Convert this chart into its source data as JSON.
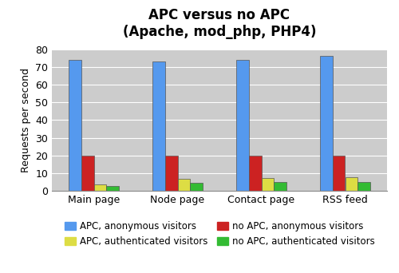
{
  "title": "APC versus no APC\n(Apache, mod_php, PHP4)",
  "ylabel": "Requests per second",
  "categories": [
    "Main page",
    "Node page",
    "Contact page",
    "RSS feed"
  ],
  "series": [
    {
      "label": "APC, anonymous visitors",
      "color": "#5599ee",
      "values": [
        74,
        73,
        74,
        76
      ]
    },
    {
      "label": "no APC, anonymous visitors",
      "color": "#cc2222",
      "values": [
        20,
        20,
        20,
        20
      ]
    },
    {
      "label": "APC, authenticated visitors",
      "color": "#dddd44",
      "values": [
        4,
        7,
        7.5,
        8
      ]
    },
    {
      "label": "no APC, authenticated visitors",
      "color": "#33bb33",
      "values": [
        3,
        4.5,
        5,
        5
      ]
    }
  ],
  "ylim": [
    0,
    80
  ],
  "yticks": [
    0,
    10,
    20,
    30,
    40,
    50,
    60,
    70,
    80
  ],
  "plot_bg_color": "#cccccc",
  "fig_bg_color": "#ffffff",
  "title_fontsize": 12,
  "axis_label_fontsize": 9,
  "tick_fontsize": 9,
  "legend_fontsize": 8.5,
  "bar_width": 0.15,
  "legend_order": [
    0,
    2,
    1,
    3
  ]
}
